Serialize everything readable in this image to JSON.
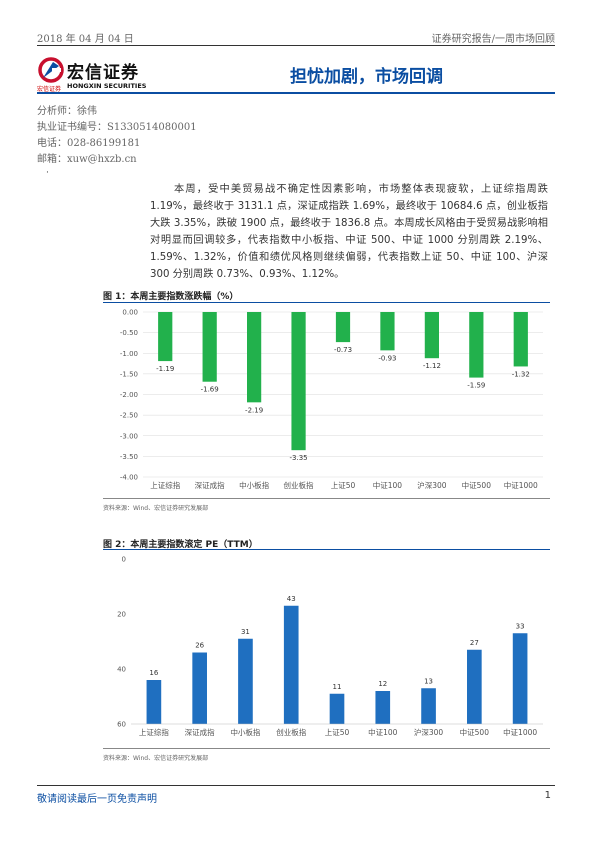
{
  "header": {
    "date": "2018 年 04 月 04 日",
    "category": "证券研究报告/一周市场回顾"
  },
  "logo": {
    "name_cn": "宏信证券",
    "sub_cn": "宏信证券",
    "sub_en": "HONGXIN SECURITIES",
    "brand_color": "#c8102e"
  },
  "title": "担忧加剧，市场回调",
  "analyst": {
    "name_line": "分析师：徐伟",
    "license_line": "执业证书编号：S1330514080001",
    "phone_line": "电话：028-86199181",
    "email_line": "邮箱：xuw@hxzb.cn"
  },
  "bullet": "·",
  "summary": "本周，受中美贸易战不确定性因素影响，市场整体表现疲软，上证综指周跌 1.19%，最终收于 3131.1 点，深证成指跌 1.69%，最终收于 10684.6 点，创业板指大跌 3.35%，跌破 1900 点，最终收于 1836.8 点。本周成长风格由于受贸易战影响相对明显而回调较多，代表指数中小板指、中证 500、中证 1000 分别周跌 2.19%、1.59%、1.32%，价值和绩优风格则继续偏弱，代表指数上证 50、中证 100、沪深 300 分别周跌 0.73%、0.93%、1.12%。",
  "figure1": {
    "title": "图 1：本周主要指数涨跌幅（%）",
    "source": "资料来源：Wind、宏信证券研究发展部"
  },
  "figure2": {
    "title": "图 2：本周主要指数滚定 PE（TTM）",
    "source": "资料来源：Wind、宏信证券研究发展部"
  },
  "chart_data": [
    {
      "type": "bar",
      "title": "本周主要指数涨跌幅（%）",
      "categories": [
        "上证综指",
        "深证成指",
        "中小板指",
        "创业板指",
        "上证50",
        "中证100",
        "沪深300",
        "中证500",
        "中证1000"
      ],
      "values": [
        -1.19,
        -1.69,
        -2.19,
        -3.35,
        -0.73,
        -0.93,
        -1.12,
        -1.59,
        -1.32
      ],
      "ylim": [
        -4.0,
        0.0
      ],
      "yticks": [
        "0.00",
        "-0.50",
        "-1.00",
        "-1.50",
        "-2.00",
        "-2.50",
        "-3.00",
        "-3.50",
        "-4.00"
      ],
      "grid": true,
      "color": "#22b14c"
    },
    {
      "type": "bar",
      "title": "本周主要指数滚定 PE（TTM）",
      "categories": [
        "上证综指",
        "深证成指",
        "中小板指",
        "创业板指",
        "上证50",
        "中证100",
        "沪深300",
        "中证500",
        "中证1000"
      ],
      "values": [
        16,
        26,
        31,
        43,
        11,
        12,
        13,
        27,
        33
      ],
      "ylim": [
        0,
        60
      ],
      "yticks": [
        "0",
        "20",
        "40",
        "60"
      ],
      "grid": false,
      "color": "#1f6fc0"
    }
  ],
  "footer": {
    "disclaimer": "敬请阅读最后一页免责声明",
    "page": "1"
  }
}
